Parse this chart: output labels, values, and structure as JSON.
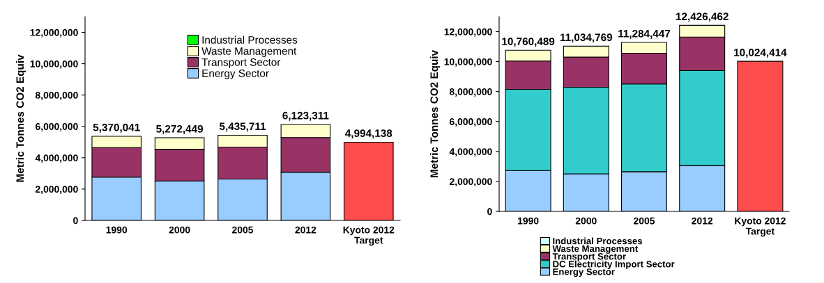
{
  "chart_data": [
    {
      "type": "bar",
      "stacked": true,
      "ylabel": "Metric Tonnes CO2 Equiv",
      "categories": [
        "1990",
        "2000",
        "2005",
        "2012",
        "Kyoto 2012\nTarget"
      ],
      "ylim": [
        0,
        13000000
      ],
      "yticks": [
        {
          "value": 0,
          "label": "0"
        },
        {
          "value": 2000000,
          "label": "2,000,000"
        },
        {
          "value": 4000000,
          "label": "4,000,000"
        },
        {
          "value": 6000000,
          "label": "6,000,000"
        },
        {
          "value": 8000000,
          "label": "8,000,000"
        },
        {
          "value": 10000000,
          "label": "10,000,000"
        },
        {
          "value": 12000000,
          "label": "12,000,000"
        }
      ],
      "legend": "top",
      "grid": false,
      "series": [
        {
          "name": "Energy Sector",
          "color": "#99ccff",
          "values": [
            2760000,
            2520000,
            2640000,
            3080000,
            null
          ]
        },
        {
          "name": "Transport Sector",
          "color": "#993366",
          "values": [
            1890000,
            2020000,
            2040000,
            2210000,
            null
          ]
        },
        {
          "name": "Waste Management",
          "color": "#ffffcc",
          "values": [
            720041,
            732449,
            755711,
            833311,
            null
          ]
        },
        {
          "name": "Industrial Processes",
          "color": "#00ff00",
          "values": [
            null,
            null,
            null,
            null,
            null
          ]
        },
        {
          "color": "#ff4d4d",
          "values": [
            null,
            null,
            null,
            null,
            4994138
          ]
        }
      ],
      "totals": [
        "5,370,041",
        "5,272,449",
        "5,435,711",
        "6,123,311",
        "4,994,138"
      ]
    },
    {
      "type": "bar",
      "stacked": true,
      "ylabel": "Metric Tonnes CO2 Equiv",
      "categories": [
        "1990",
        "2000",
        "2005",
        "2012",
        "Kyoto 2012\nTarget"
      ],
      "ylim": [
        0,
        13000000
      ],
      "yticks": [
        {
          "value": 0,
          "label": "0"
        },
        {
          "value": 2000000,
          "label": "2,000,000"
        },
        {
          "value": 4000000,
          "label": "4,000,000"
        },
        {
          "value": 6000000,
          "label": "6,000,000"
        },
        {
          "value": 8000000,
          "label": "8,000,000"
        },
        {
          "value": 10000000,
          "label": "10,000,000"
        },
        {
          "value": 12000000,
          "label": "12,000,000"
        }
      ],
      "legend": "bottom",
      "grid": false,
      "series": [
        {
          "name": "Energy Sector",
          "color": "#99ccff",
          "values": [
            2730000,
            2510000,
            2650000,
            3060000,
            null
          ]
        },
        {
          "name": "DC Electricity Import Sector",
          "color": "#33cccc",
          "values": [
            5420000,
            5780000,
            5860000,
            6340000,
            null
          ]
        },
        {
          "name": "Transport Sector",
          "color": "#993366",
          "values": [
            1890000,
            2020000,
            2050000,
            2240000,
            null
          ]
        },
        {
          "name": "Waste Management",
          "color": "#ffffcc",
          "values": [
            720489,
            724769,
            724447,
            786462,
            null
          ]
        },
        {
          "name": "Industrial Processes",
          "color": "#ccffff",
          "values": [
            null,
            null,
            null,
            null,
            null
          ]
        },
        {
          "color": "#ff4d4d",
          "values": [
            null,
            null,
            null,
            null,
            10024414
          ]
        }
      ],
      "totals": [
        "10,760,489",
        "11,034,769",
        "11,284,447",
        "12,426,462",
        "10,024,414"
      ]
    }
  ]
}
